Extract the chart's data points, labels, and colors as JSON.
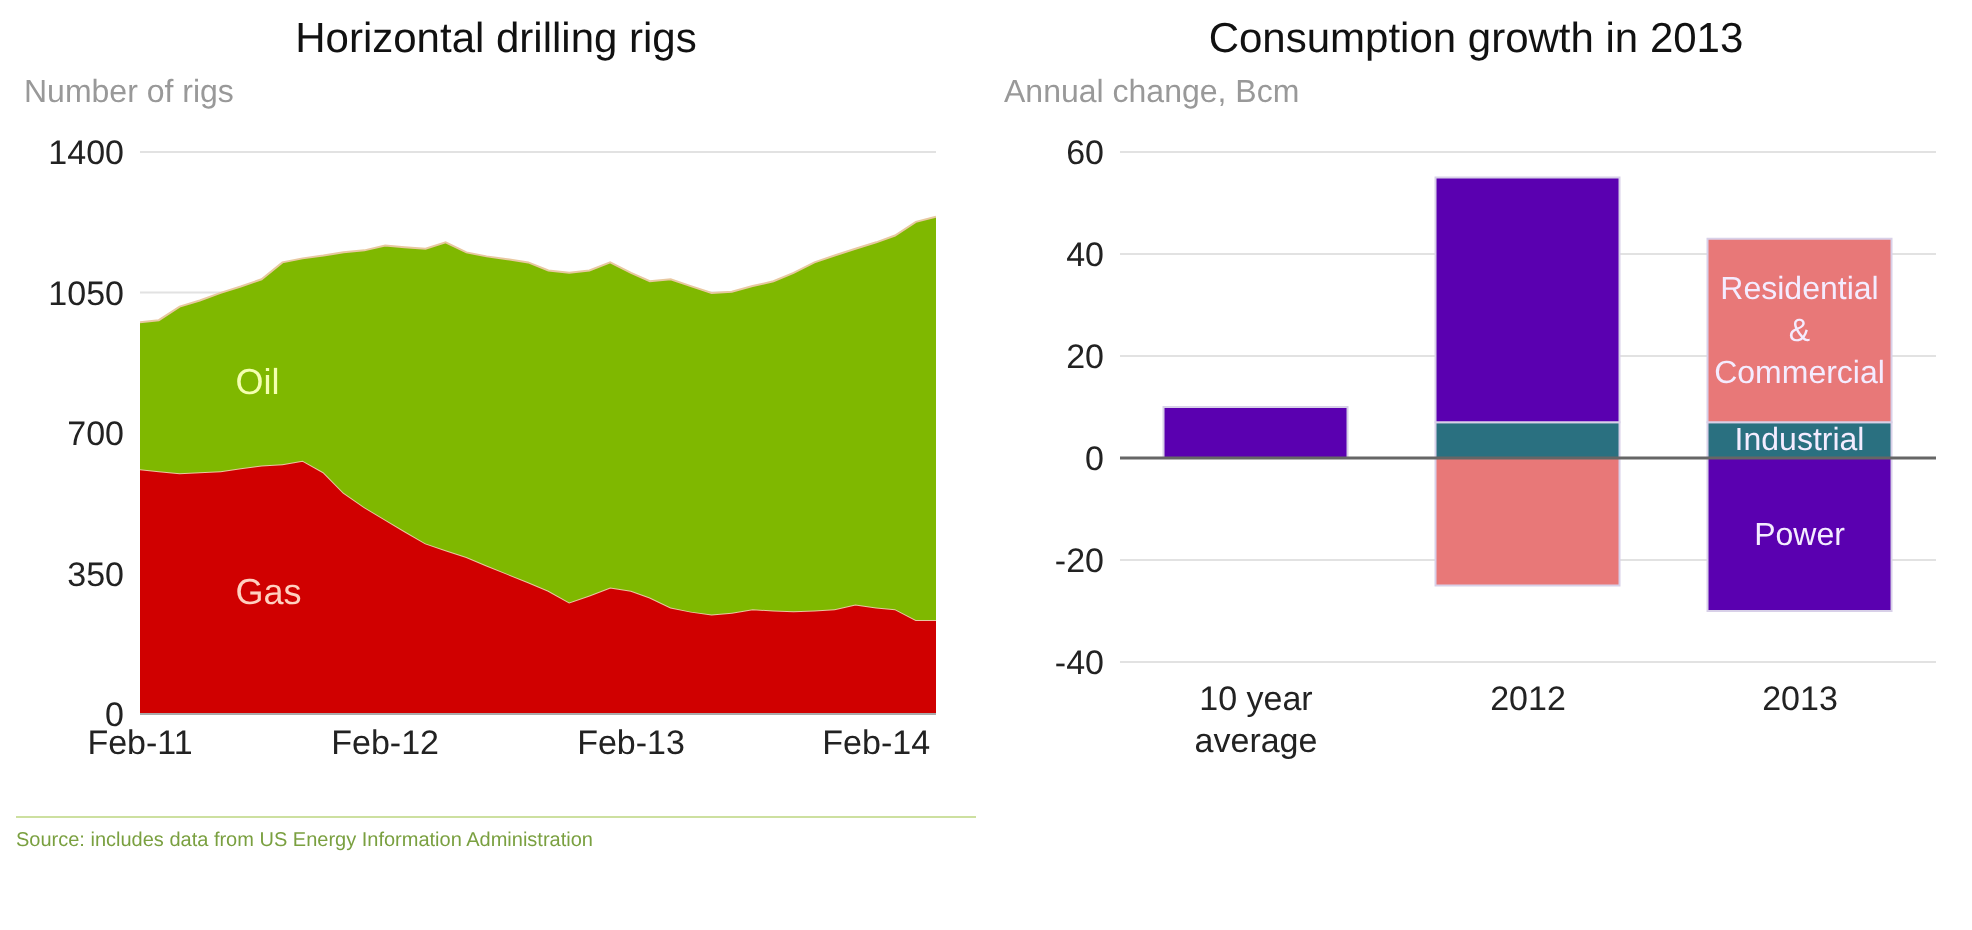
{
  "chart_data": [
    {
      "type": "area",
      "title": "Horizontal drilling rigs",
      "ylabel": "Number of rigs",
      "stacked": true,
      "grid": "y",
      "legend": false,
      "x": [
        "2011-02",
        "2011-03",
        "2011-04",
        "2011-05",
        "2011-06",
        "2011-07",
        "2011-08",
        "2011-09",
        "2011-10",
        "2011-11",
        "2011-12",
        "2012-01",
        "2012-02",
        "2012-03",
        "2012-04",
        "2012-05",
        "2012-06",
        "2012-07",
        "2012-08",
        "2012-09",
        "2012-10",
        "2012-11",
        "2012-12",
        "2013-01",
        "2013-02",
        "2013-03",
        "2013-04",
        "2013-05",
        "2013-06",
        "2013-07",
        "2013-08",
        "2013-09",
        "2013-10",
        "2013-11",
        "2013-12",
        "2014-01",
        "2014-02",
        "2014-03",
        "2014-04",
        "2014-05"
      ],
      "series": [
        {
          "name": "Gas",
          "color": "#d00000",
          "values": [
            610,
            605,
            600,
            602,
            605,
            612,
            619,
            622,
            631,
            602,
            551,
            515,
            484,
            455,
            425,
            408,
            391,
            370,
            349,
            328,
            307,
            278,
            295,
            315,
            307,
            290,
            265,
            255,
            248,
            252,
            261,
            258,
            256,
            258,
            261,
            273,
            265,
            261,
            234,
            234
          ]
        },
        {
          "name": "Oil",
          "color": "#7fb800",
          "values": [
            366,
            376,
            415,
            428,
            444,
            453,
            464,
            503,
            504,
            540,
            599,
            640,
            683,
            708,
            734,
            767,
            759,
            770,
            784,
            797,
            798,
            821,
            810,
            810,
            792,
            788,
            818,
            811,
            801,
            800,
            805,
            820,
            843,
            867,
            881,
            886,
            910,
            931,
            992,
            1005
          ]
        }
      ],
      "xlim": [
        "2011-02",
        "2014-05"
      ],
      "xticks": [
        {
          "value": "2011-02",
          "label": "Feb-11"
        },
        {
          "value": "2012-02",
          "label": "Feb-12"
        },
        {
          "value": "2013-02",
          "label": "Feb-13"
        },
        {
          "value": "2014-02",
          "label": "Feb-14"
        }
      ],
      "ylim": [
        0,
        1400
      ],
      "yticks": [
        0,
        350,
        700,
        1050,
        1400
      ],
      "annotations": [
        "Source: includes data from US Energy Information Administration"
      ]
    },
    {
      "type": "bar",
      "title": "Consumption growth in 2013",
      "ylabel": "Annual change, Bcm",
      "stacked": true,
      "grid": "y",
      "legend": false,
      "categories": [
        "10 year average",
        "2012",
        "2013"
      ],
      "series": [
        {
          "name": "Industrial",
          "color": "#2a7080",
          "values": [
            null,
            7,
            7
          ]
        },
        {
          "name": "Power",
          "color": "#5a00b0",
          "values": [
            10,
            48,
            -30
          ]
        },
        {
          "name": "Residential & Commercial",
          "color": "#e87878",
          "values": [
            null,
            -25,
            36
          ]
        }
      ],
      "ylim": [
        -40,
        60
      ],
      "yticks": [
        -40,
        -20,
        0,
        20,
        40,
        60
      ],
      "ref_lines": [
        {
          "axis": "y",
          "value": 0,
          "color": "#666666"
        }
      ]
    }
  ]
}
